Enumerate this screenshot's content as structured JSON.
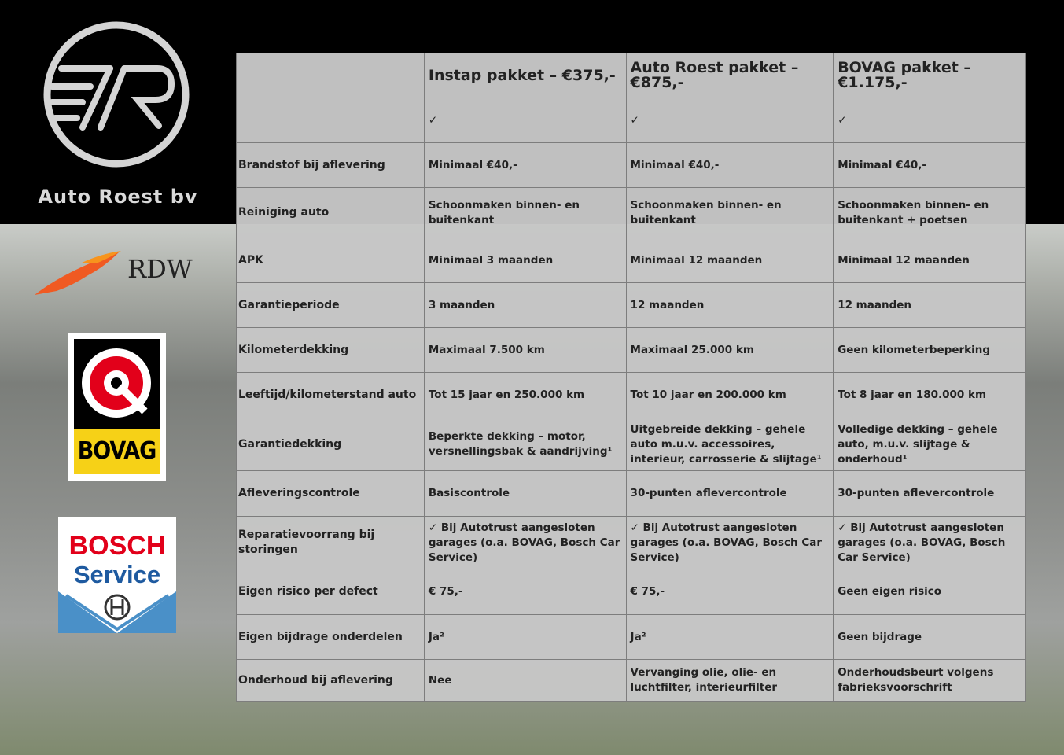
{
  "brand": {
    "name": "Auto Roest bv",
    "logo_icon": "ar-circle-logo"
  },
  "partners": [
    {
      "name": "RDW",
      "color": "#f05a22"
    },
    {
      "name": "BOVAG",
      "color": "#f6d117"
    },
    {
      "name": "BOSCH",
      "sub": "Service",
      "color": "#e2001a",
      "sub_color": "#1e5aa0"
    }
  ],
  "table": {
    "headers": [
      "",
      "Instap pakket – €375,-",
      "Auto Roest pakket – €875,-",
      "BOVAG pakket – €1.175,-"
    ],
    "rows": [
      [
        "",
        "✓",
        "✓",
        "✓"
      ],
      [
        "Brandstof bij aflevering",
        "Minimaal €40,-",
        "Minimaal €40,-",
        "Minimaal €40,-"
      ],
      [
        "Reiniging auto",
        "Schoonmaken binnen- en buitenkant",
        "Schoonmaken binnen- en buitenkant",
        "Schoonmaken binnen- en buitenkant + poetsen"
      ],
      [
        "APK",
        "Minimaal 3 maanden",
        "Minimaal 12 maanden",
        "Minimaal 12 maanden"
      ],
      [
        "Garantieperiode",
        "3 maanden",
        "12 maanden",
        "12 maanden"
      ],
      [
        "Kilometerdekking",
        "Maximaal 7.500 km",
        "Maximaal 25.000 km",
        "Geen kilometerbeperking"
      ],
      [
        "Leeftijd/kilometerstand auto",
        "Tot 15 jaar en 250.000 km",
        "Tot 10 jaar en 200.000 km",
        "Tot 8 jaar en 180.000 km"
      ],
      [
        "Garantiedekking",
        "Beperkte dekking – motor, versnellingsbak & aandrijving¹",
        "Uitgebreide dekking – gehele auto m.u.v. accessoires, interieur, carrosserie & slijtage¹",
        "Volledige dekking – gehele auto, m.u.v. slijtage & onderhoud¹"
      ],
      [
        "Afleveringscontrole",
        "Basiscontrole",
        "30-punten aflevercontrole",
        "30-punten aflevercontrole"
      ],
      [
        "Reparatievoorrang bij storingen",
        "✓ Bij Autotrust aangesloten garages (o.a. BOVAG, Bosch Car Service)",
        "✓ Bij Autotrust aangesloten garages (o.a. BOVAG, Bosch Car Service)",
        "✓ Bij Autotrust aangesloten garages (o.a. BOVAG, Bosch Car Service)"
      ],
      [
        "Eigen risico per defect",
        "€ 75,-",
        "€ 75,-",
        "Geen eigen risico"
      ],
      [
        "Eigen bijdrage onderdelen",
        "Ja²",
        "Ja²",
        "Geen bijdrage"
      ],
      [
        "Onderhoud bij aflevering",
        "Nee",
        "Vervanging olie, olie- en luchtfilter, interieurfilter",
        "Onderhoudsbeurt volgens fabrieksvoorschrift"
      ]
    ]
  }
}
